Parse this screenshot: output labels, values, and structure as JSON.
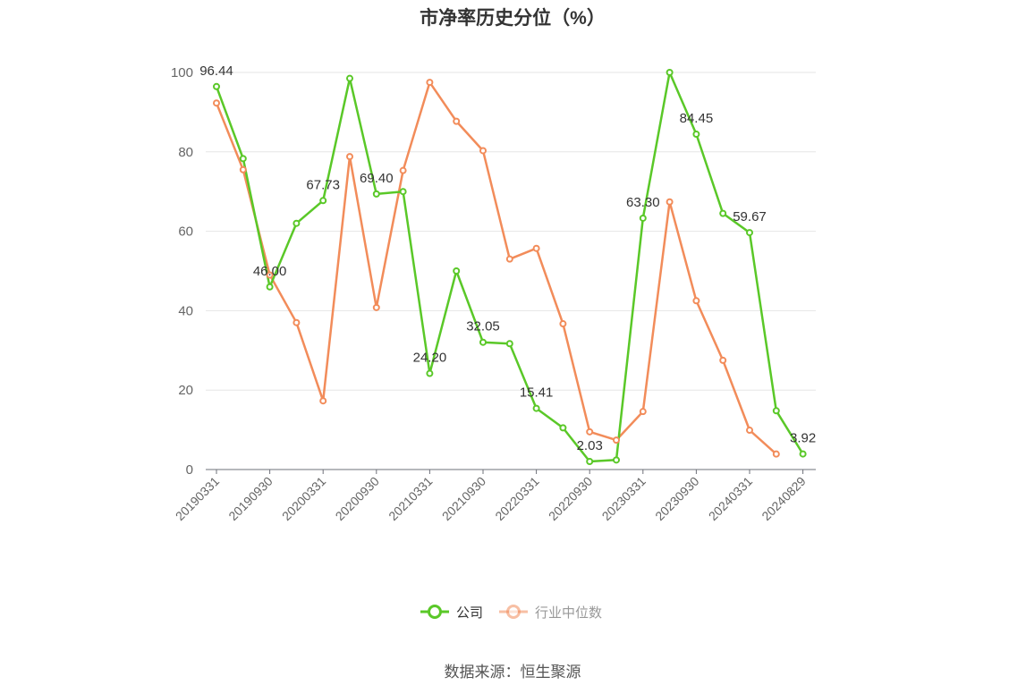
{
  "chart_data": {
    "type": "line",
    "title": "市净率历史分位（%）",
    "source": "数据来源：恒生聚源",
    "x_tick_labels": [
      "20190331",
      "20190930",
      "20200331",
      "20200930",
      "20210331",
      "20210930",
      "20220331",
      "20220930",
      "20230331",
      "20230930",
      "20240331",
      "20240829"
    ],
    "x": [
      "20190331",
      "20190630",
      "20190930",
      "20191231",
      "20200331",
      "20200630",
      "20200930",
      "20201231",
      "20210331",
      "20210630",
      "20210930",
      "20211231",
      "20220331",
      "20220630",
      "20220930",
      "20221231",
      "20230331",
      "20230630",
      "20230930",
      "20231231",
      "20240331",
      "20240630",
      "20240829"
    ],
    "ylim": [
      0,
      100
    ],
    "yticks": [
      0,
      20,
      40,
      60,
      80,
      100
    ],
    "grid": true,
    "legend_position": "bottom-center",
    "series": [
      {
        "name": "公司",
        "color": "#5ac828",
        "values": [
          96.44,
          78.3,
          46.0,
          62.0,
          67.73,
          98.5,
          69.4,
          70.0,
          24.2,
          50.0,
          32.05,
          31.7,
          15.41,
          10.5,
          2.03,
          2.4,
          63.3,
          100.0,
          84.45,
          64.5,
          59.67,
          14.8,
          3.92
        ],
        "labeled": [
          {
            "index": 0,
            "text": "96.44"
          },
          {
            "index": 2,
            "text": "46.00"
          },
          {
            "index": 4,
            "text": "67.73"
          },
          {
            "index": 6,
            "text": "69.40"
          },
          {
            "index": 8,
            "text": "24.20"
          },
          {
            "index": 10,
            "text": "32.05"
          },
          {
            "index": 12,
            "text": "15.41"
          },
          {
            "index": 14,
            "text": "2.03"
          },
          {
            "index": 16,
            "text": "63.30"
          },
          {
            "index": 18,
            "text": "84.45"
          },
          {
            "index": 20,
            "text": "59.67"
          },
          {
            "index": 22,
            "text": "3.92"
          }
        ]
      },
      {
        "name": "行业中位数",
        "color": "#f28c5a",
        "values": [
          92.3,
          75.5,
          49.0,
          37.0,
          17.3,
          78.8,
          40.8,
          75.3,
          97.5,
          87.7,
          80.3,
          53.0,
          55.7,
          36.7,
          9.5,
          7.4,
          14.6,
          67.4,
          42.5,
          27.5,
          9.9,
          3.9,
          null
        ]
      }
    ]
  }
}
